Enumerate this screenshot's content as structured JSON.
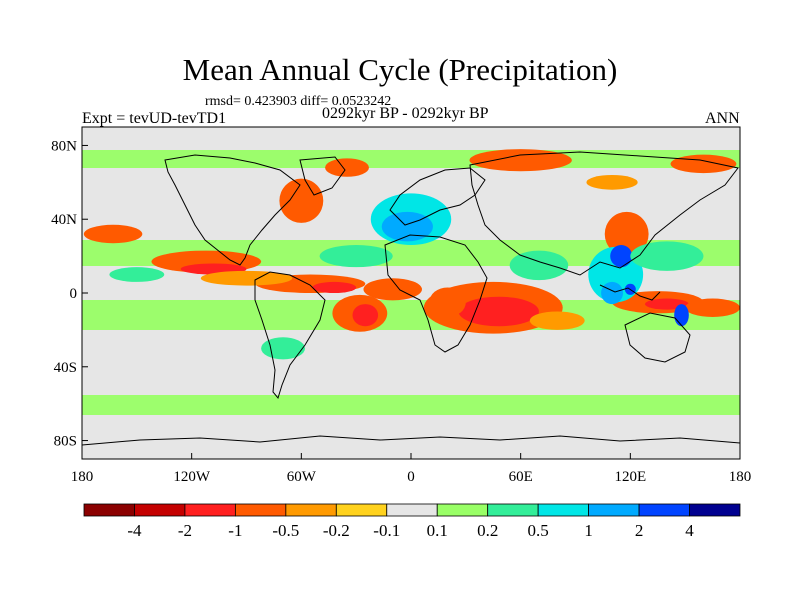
{
  "chart_data": {
    "type": "heatmap",
    "projection": "cylindrical-equidistant",
    "title": "Mean Annual Cycle (Precipitation)",
    "stats": "rmsd= 0.423903  diff= 0.0523242",
    "experiment": "Expt = tevUD-tevTD1",
    "period": "0292kyr BP - 0292kyr BP",
    "season": "ANN",
    "x_range": [
      -180,
      180
    ],
    "y_range": [
      -90,
      90
    ],
    "x_ticks": [
      {
        "value": -180,
        "label": "180"
      },
      {
        "value": -120,
        "label": "120W"
      },
      {
        "value": -60,
        "label": "60W"
      },
      {
        "value": 0,
        "label": "0"
      },
      {
        "value": 60,
        "label": "60E"
      },
      {
        "value": 120,
        "label": "120E"
      },
      {
        "value": 180,
        "label": "180"
      }
    ],
    "y_ticks": [
      {
        "value": 80,
        "label": "80N"
      },
      {
        "value": 40,
        "label": "40N"
      },
      {
        "value": 0,
        "label": "0"
      },
      {
        "value": -40,
        "label": "40S"
      },
      {
        "value": -80,
        "label": "80S"
      }
    ],
    "colorbar": {
      "levels": [
        "-4",
        "-2",
        "-1",
        "-0.5",
        "-0.2",
        "-0.1",
        "0.1",
        "0.2",
        "0.5",
        "1",
        "2",
        "4"
      ],
      "colors": [
        "#8b0000",
        "#c40000",
        "#ff2020",
        "#ff5a00",
        "#ff9a00",
        "#ffd21e",
        "#e6e6e6",
        "#99ff66",
        "#33ee99",
        "#00e6e6",
        "#00aaff",
        "#0044ff",
        "#000090"
      ]
    },
    "regions": [
      {
        "lon": -112,
        "lat": 17,
        "rx": 30,
        "ry": 6,
        "bin": 3
      },
      {
        "lon": -108,
        "lat": 13,
        "rx": 18,
        "ry": 3,
        "bin": 2
      },
      {
        "lon": -55,
        "lat": 5,
        "rx": 30,
        "ry": 5,
        "bin": 3
      },
      {
        "lon": -42,
        "lat": 3,
        "rx": 12,
        "ry": 3,
        "bin": 2
      },
      {
        "lon": -28,
        "lat": -11,
        "rx": 15,
        "ry": 10,
        "bin": 3
      },
      {
        "lon": -25,
        "lat": -12,
        "rx": 7,
        "ry": 6,
        "bin": 2
      },
      {
        "lon": -10,
        "lat": 2,
        "rx": 16,
        "ry": 6,
        "bin": 3
      },
      {
        "lon": 45,
        "lat": -8,
        "rx": 38,
        "ry": 14,
        "bin": 3
      },
      {
        "lon": 48,
        "lat": -10,
        "rx": 22,
        "ry": 8,
        "bin": 2
      },
      {
        "lon": 20,
        "lat": -5,
        "rx": 10,
        "ry": 8,
        "bin": 3
      },
      {
        "lon": 135,
        "lat": -5,
        "rx": 25,
        "ry": 6,
        "bin": 3
      },
      {
        "lon": 140,
        "lat": -6,
        "rx": 12,
        "ry": 3,
        "bin": 2
      },
      {
        "lon": 165,
        "lat": -8,
        "rx": 15,
        "ry": 5,
        "bin": 3
      },
      {
        "lon": 118,
        "lat": 32,
        "rx": 12,
        "ry": 12,
        "bin": 3
      },
      {
        "lon": -163,
        "lat": 32,
        "rx": 16,
        "ry": 5,
        "bin": 3
      },
      {
        "lon": -60,
        "lat": 50,
        "rx": 12,
        "ry": 12,
        "bin": 3
      },
      {
        "lon": -35,
        "lat": 68,
        "rx": 12,
        "ry": 5,
        "bin": 3
      },
      {
        "lon": 60,
        "lat": 72,
        "rx": 28,
        "ry": 6,
        "bin": 3
      },
      {
        "lon": 160,
        "lat": 70,
        "rx": 18,
        "ry": 5,
        "bin": 3
      },
      {
        "lon": 110,
        "lat": 60,
        "rx": 14,
        "ry": 4,
        "bin": 4
      },
      {
        "lon": -90,
        "lat": 8,
        "rx": 25,
        "ry": 4,
        "bin": 4
      },
      {
        "lon": 80,
        "lat": -15,
        "rx": 15,
        "ry": 5,
        "bin": 4
      },
      {
        "lon": 0,
        "lat": 40,
        "rx": 22,
        "ry": 14,
        "bin": 9
      },
      {
        "lon": -2,
        "lat": 36,
        "rx": 14,
        "ry": 8,
        "bin": 10
      },
      {
        "lon": 112,
        "lat": 10,
        "rx": 15,
        "ry": 15,
        "bin": 9
      },
      {
        "lon": 110,
        "lat": 0,
        "rx": 6,
        "ry": 6,
        "bin": 10
      },
      {
        "lon": 115,
        "lat": 20,
        "rx": 6,
        "ry": 6,
        "bin": 11
      },
      {
        "lon": 148,
        "lat": -12,
        "rx": 4,
        "ry": 6,
        "bin": 11
      },
      {
        "lon": 120,
        "lat": 2,
        "rx": 3,
        "ry": 3,
        "bin": 11
      },
      {
        "lon": 70,
        "lat": 15,
        "rx": 16,
        "ry": 8,
        "bin": 8
      },
      {
        "lon": 140,
        "lat": 20,
        "rx": 20,
        "ry": 8,
        "bin": 8
      },
      {
        "lon": -30,
        "lat": 20,
        "rx": 20,
        "ry": 6,
        "bin": 8
      },
      {
        "lon": -150,
        "lat": 10,
        "rx": 15,
        "ry": 4,
        "bin": 8
      },
      {
        "lon": -70,
        "lat": -30,
        "rx": 12,
        "ry": 6,
        "bin": 8
      }
    ]
  }
}
